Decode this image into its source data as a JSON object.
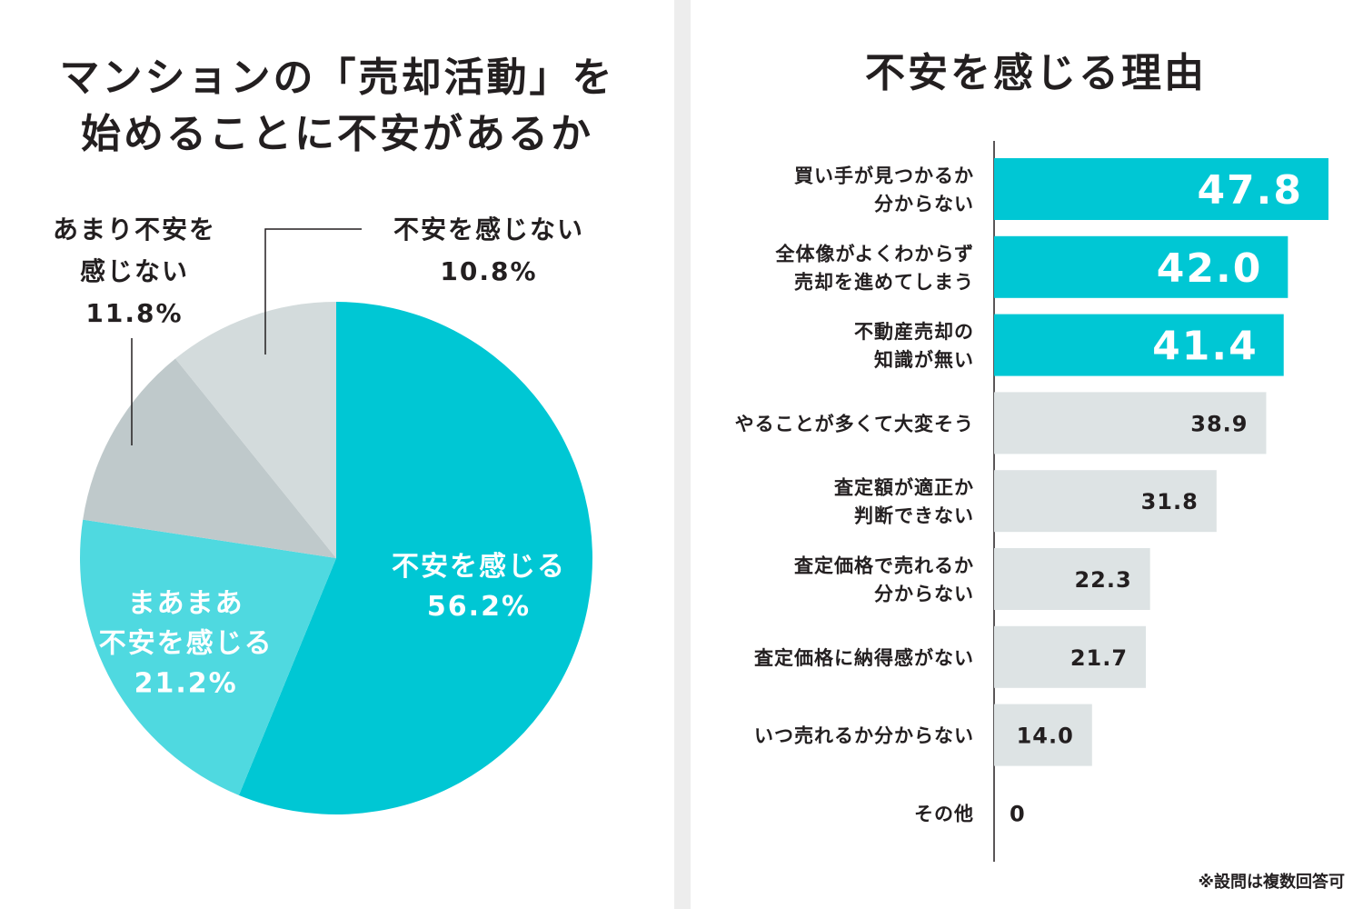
{
  "colors": {
    "accent_dark": "#00c7d4",
    "accent_light": "#4fd9e0",
    "gray_mid": "#bfc9cb",
    "gray_light": "#d3dbdc",
    "bar_gray": "#dde3e4",
    "text": "#231f20"
  },
  "chart_data": [
    {
      "type": "pie",
      "title": "マンションの「売却活動」を始めることに不安があるか",
      "title_lines": [
        "マンションの「売却活動」を",
        "始めることに不安があるか"
      ],
      "unit": "%",
      "slices": [
        {
          "name": "不安を感じる",
          "value": 56.2,
          "label_lines": [
            "不安を感じる",
            "56.2%"
          ],
          "color": "#00c7d4",
          "label_position": "inside"
        },
        {
          "name": "まあまあ不安を感じる",
          "value": 21.2,
          "label_lines": [
            "まあまあ",
            "不安を感じる",
            "21.2%"
          ],
          "color": "#4fd9e0",
          "label_position": "inside"
        },
        {
          "name": "あまり不安を感じない",
          "value": 11.8,
          "label_lines": [
            "あまり不安を",
            "感じない",
            "11.8%"
          ],
          "color": "#bfc9cb",
          "label_position": "outside"
        },
        {
          "name": "不安を感じない",
          "value": 10.8,
          "label_lines": [
            "不安を感じない",
            "10.8%"
          ],
          "color": "#d3dbdc",
          "label_position": "outside"
        }
      ]
    },
    {
      "type": "bar",
      "orientation": "horizontal",
      "title": "不安を感じる理由",
      "xlim": [
        0,
        50
      ],
      "highlight_top": 3,
      "categories": [
        {
          "label": "買い手が見つかるか分からない",
          "label_lines": [
            "買い手が見つかるか",
            "分からない"
          ],
          "value": 47.8,
          "value_text": "47.8"
        },
        {
          "label": "全体像がよくわからず売却を進めてしまう",
          "label_lines": [
            "全体像がよくわからず",
            "売却を進めてしまう"
          ],
          "value": 42.0,
          "value_text": "42.0"
        },
        {
          "label": "不動産売却の知識が無い",
          "label_lines": [
            "不動産売却の",
            "知識が無い"
          ],
          "value": 41.4,
          "value_text": "41.4"
        },
        {
          "label": "やることが多くて大変そう",
          "label_lines": [
            "やることが多くて大変そう"
          ],
          "value": 38.9,
          "value_text": "38.9"
        },
        {
          "label": "査定額が適正か判断できない",
          "label_lines": [
            "査定額が適正か",
            "判断できない"
          ],
          "value": 31.8,
          "value_text": "31.8"
        },
        {
          "label": "査定価格で売れるか分からない",
          "label_lines": [
            "査定価格で売れるか",
            "分からない"
          ],
          "value": 22.3,
          "value_text": "22.3"
        },
        {
          "label": "査定価格に納得感がない",
          "label_lines": [
            "査定価格に納得感がない"
          ],
          "value": 21.7,
          "value_text": "21.7"
        },
        {
          "label": "いつ売れるか分からない",
          "label_lines": [
            "いつ売れるか分からない"
          ],
          "value": 14.0,
          "value_text": "14.0"
        },
        {
          "label": "その他",
          "label_lines": [
            "その他"
          ],
          "value": 0,
          "value_text": "0"
        }
      ],
      "note": "※設問は複数回答可"
    }
  ]
}
